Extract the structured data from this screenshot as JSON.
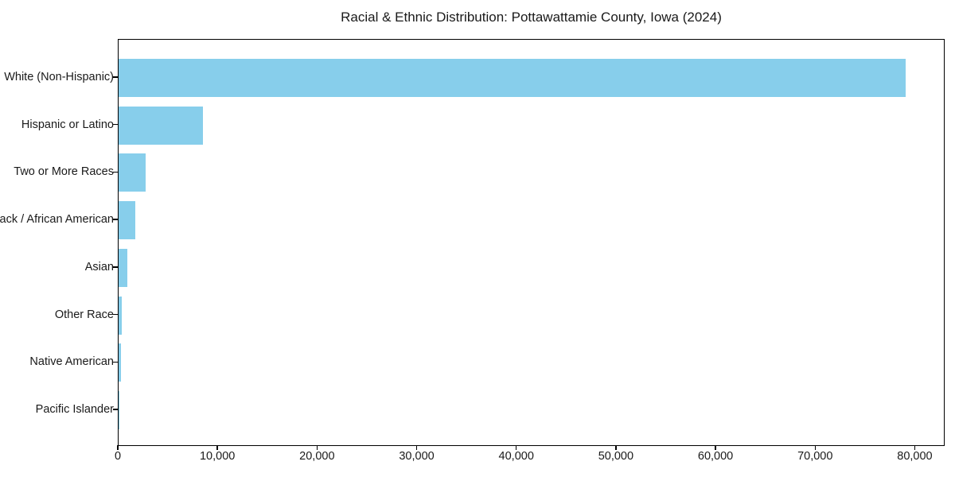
{
  "chart_data": {
    "type": "bar",
    "orientation": "horizontal",
    "title": "Racial & Ethnic Distribution: Pottawattamie County, Iowa (2024)",
    "categories": [
      "White (Non-Hispanic)",
      "Hispanic or Latino",
      "Two or More Races",
      "Black / African American",
      "Asian",
      "Other Race",
      "Native American",
      "Pacific Islander"
    ],
    "values": [
      79000,
      8500,
      2750,
      1700,
      850,
      350,
      250,
      80
    ],
    "xlabel": "",
    "ylabel": "",
    "xlim": [
      0,
      83000
    ],
    "xticks": [
      0,
      10000,
      20000,
      30000,
      40000,
      50000,
      60000,
      70000,
      80000
    ],
    "xtick_labels": [
      "0",
      "10,000",
      "20,000",
      "30,000",
      "40,000",
      "50,000",
      "60,000",
      "70,000",
      "80,000"
    ],
    "bar_color": "#87CEEB",
    "axis_color": "#000000",
    "text_color": "#1a1a1a",
    "grid": "off",
    "legend": "none"
  }
}
